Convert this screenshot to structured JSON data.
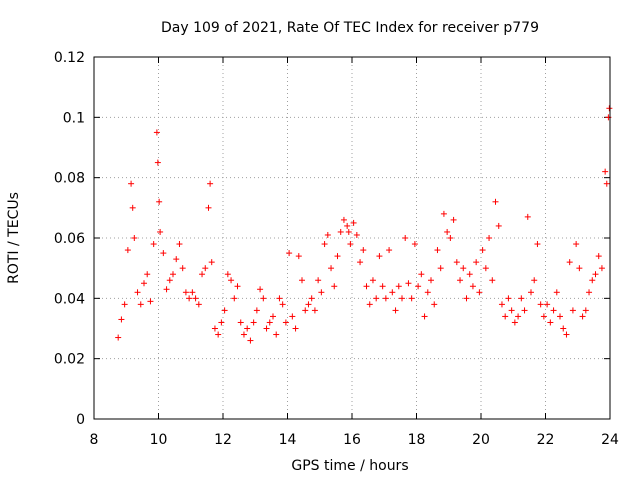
{
  "chart_data": {
    "type": "scatter",
    "title": "Day 109 of 2021, Rate Of TEC Index for receiver p779",
    "xlabel": "GPS time / hours",
    "ylabel": "ROTI / TECUs",
    "xlim": [
      8,
      24
    ],
    "ylim": [
      0,
      0.12
    ],
    "x_ticks": [
      8,
      10,
      12,
      14,
      16,
      18,
      20,
      22,
      24
    ],
    "y_ticks": [
      0,
      0.02,
      0.04,
      0.06,
      0.08,
      0.1,
      0.12
    ],
    "x_tick_labels": [
      "8",
      "10",
      "12",
      "14",
      "16",
      "18",
      "20",
      "22",
      "24"
    ],
    "y_tick_labels": [
      "0",
      "0.02",
      "0.04",
      "0.06",
      "0.08",
      "0.1",
      "0.12"
    ],
    "grid": true,
    "marker": "+",
    "color": "#ff0000",
    "series": [
      {
        "name": "ROTI",
        "x": [
          8.75,
          8.85,
          8.95,
          9.05,
          9.15,
          9.2,
          9.25,
          9.35,
          9.45,
          9.55,
          9.65,
          9.75,
          9.85,
          9.95,
          9.98,
          10.02,
          10.05,
          10.15,
          10.25,
          10.35,
          10.45,
          10.55,
          10.65,
          10.75,
          10.85,
          10.95,
          11.05,
          11.15,
          11.25,
          11.35,
          11.45,
          11.55,
          11.6,
          11.65,
          11.75,
          11.85,
          11.95,
          12.05,
          12.15,
          12.25,
          12.35,
          12.45,
          12.55,
          12.65,
          12.75,
          12.85,
          12.95,
          13.05,
          13.15,
          13.25,
          13.35,
          13.45,
          13.55,
          13.65,
          13.75,
          13.85,
          13.95,
          14.05,
          14.15,
          14.25,
          14.35,
          14.45,
          14.55,
          14.65,
          14.75,
          14.85,
          14.95,
          15.05,
          15.15,
          15.25,
          15.35,
          15.45,
          15.55,
          15.65,
          15.75,
          15.85,
          15.9,
          15.95,
          16.05,
          16.15,
          16.25,
          16.35,
          16.45,
          16.55,
          16.65,
          16.75,
          16.85,
          16.95,
          17.05,
          17.15,
          17.25,
          17.35,
          17.45,
          17.55,
          17.65,
          17.75,
          17.85,
          17.95,
          18.05,
          18.15,
          18.25,
          18.35,
          18.45,
          18.55,
          18.65,
          18.75,
          18.85,
          18.95,
          19.05,
          19.15,
          19.25,
          19.35,
          19.45,
          19.55,
          19.65,
          19.75,
          19.85,
          19.95,
          20.05,
          20.15,
          20.25,
          20.35,
          20.45,
          20.55,
          20.65,
          20.75,
          20.85,
          20.95,
          21.05,
          21.15,
          21.25,
          21.35,
          21.45,
          21.55,
          21.65,
          21.75,
          21.85,
          21.95,
          22.05,
          22.15,
          22.25,
          22.35,
          22.45,
          22.55,
          22.65,
          22.75,
          22.85,
          22.95,
          23.05,
          23.15,
          23.25,
          23.35,
          23.45,
          23.55,
          23.65,
          23.75,
          23.85,
          23.9,
          23.95,
          23.98
        ],
        "y": [
          0.027,
          0.033,
          0.038,
          0.056,
          0.078,
          0.07,
          0.06,
          0.042,
          0.038,
          0.045,
          0.048,
          0.039,
          0.058,
          0.095,
          0.085,
          0.072,
          0.062,
          0.055,
          0.043,
          0.046,
          0.048,
          0.053,
          0.058,
          0.05,
          0.042,
          0.04,
          0.042,
          0.04,
          0.038,
          0.048,
          0.05,
          0.07,
          0.078,
          0.052,
          0.03,
          0.028,
          0.032,
          0.036,
          0.048,
          0.046,
          0.04,
          0.044,
          0.032,
          0.028,
          0.03,
          0.026,
          0.032,
          0.036,
          0.043,
          0.04,
          0.03,
          0.032,
          0.034,
          0.028,
          0.04,
          0.038,
          0.032,
          0.055,
          0.034,
          0.03,
          0.054,
          0.046,
          0.036,
          0.038,
          0.04,
          0.036,
          0.046,
          0.042,
          0.058,
          0.061,
          0.05,
          0.044,
          0.054,
          0.062,
          0.066,
          0.064,
          0.062,
          0.058,
          0.065,
          0.061,
          0.052,
          0.056,
          0.044,
          0.038,
          0.046,
          0.04,
          0.054,
          0.044,
          0.04,
          0.056,
          0.042,
          0.036,
          0.044,
          0.04,
          0.06,
          0.045,
          0.04,
          0.058,
          0.044,
          0.048,
          0.034,
          0.042,
          0.046,
          0.038,
          0.056,
          0.05,
          0.068,
          0.062,
          0.06,
          0.066,
          0.052,
          0.046,
          0.05,
          0.04,
          0.048,
          0.044,
          0.052,
          0.042,
          0.056,
          0.05,
          0.06,
          0.046,
          0.072,
          0.064,
          0.038,
          0.034,
          0.04,
          0.036,
          0.032,
          0.034,
          0.04,
          0.036,
          0.067,
          0.042,
          0.046,
          0.058,
          0.038,
          0.034,
          0.038,
          0.032,
          0.036,
          0.042,
          0.034,
          0.03,
          0.028,
          0.052,
          0.036,
          0.058,
          0.05,
          0.034,
          0.036,
          0.042,
          0.046,
          0.048,
          0.054,
          0.05,
          0.082,
          0.078,
          0.1,
          0.103
        ]
      }
    ]
  }
}
